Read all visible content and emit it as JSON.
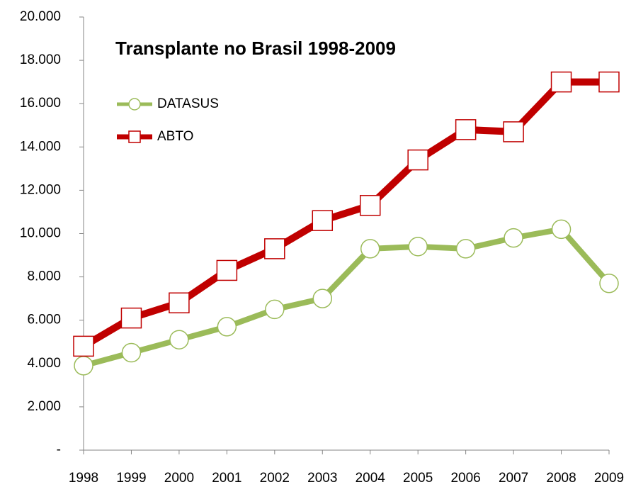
{
  "chart_data": {
    "type": "line",
    "title": "Transplante no Brasil 1998-2009",
    "categories": [
      "1998",
      "1999",
      "2000",
      "2001",
      "2002",
      "2003",
      "2004",
      "2005",
      "2006",
      "2007",
      "2008",
      "2009"
    ],
    "series": [
      {
        "name": "DATASUS",
        "color": "#9bbb59",
        "marker": "circle",
        "values": [
          3900,
          4500,
          5100,
          5700,
          6500,
          7000,
          9300,
          9400,
          9300,
          9800,
          10200,
          7700
        ]
      },
      {
        "name": "ABTO",
        "color": "#c00000",
        "marker": "square",
        "values": [
          4800,
          6100,
          6800,
          8300,
          9300,
          10600,
          11300,
          13400,
          14800,
          14700,
          17000,
          17000
        ]
      }
    ],
    "ylim": [
      0,
      20000
    ],
    "yticks": [
      {
        "value": 0,
        "label": "-"
      },
      {
        "value": 2000,
        "label": "2.000"
      },
      {
        "value": 4000,
        "label": "4.000"
      },
      {
        "value": 6000,
        "label": "6.000"
      },
      {
        "value": 8000,
        "label": "8.000"
      },
      {
        "value": 10000,
        "label": "10.000"
      },
      {
        "value": 12000,
        "label": "12.000"
      },
      {
        "value": 14000,
        "label": "14.000"
      },
      {
        "value": 16000,
        "label": "16.000"
      },
      {
        "value": 18000,
        "label": "18.000"
      },
      {
        "value": 20000,
        "label": "20.000"
      }
    ],
    "grid": false,
    "legend": "upper left"
  }
}
